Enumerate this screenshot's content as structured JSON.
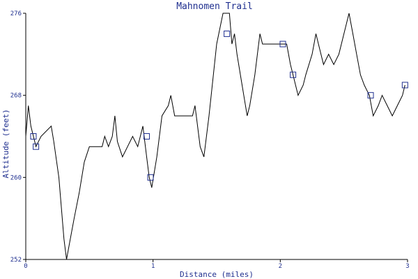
{
  "chart_data": {
    "type": "line",
    "title": "Mahnomen Trail",
    "xlabel": "Distance (miles)",
    "ylabel": "Altitude (feet)",
    "xlim": [
      0,
      3
    ],
    "ylim": [
      252,
      276
    ],
    "x_ticks": [
      0,
      1,
      2,
      3
    ],
    "y_ticks": [
      252,
      260,
      268,
      276
    ],
    "grid": false,
    "colors": {
      "line": "#000000",
      "text": "#1f2f8f",
      "marker": "#1f2f8f"
    },
    "series": [
      {
        "points": [
          [
            0.0,
            264.0
          ],
          [
            0.02,
            267.0
          ],
          [
            0.04,
            265.0
          ],
          [
            0.06,
            264.0
          ],
          [
            0.08,
            263.0
          ],
          [
            0.12,
            264.0
          ],
          [
            0.2,
            265.0
          ],
          [
            0.22,
            263.5
          ],
          [
            0.26,
            260.0
          ],
          [
            0.3,
            254.0
          ],
          [
            0.32,
            252.0
          ],
          [
            0.35,
            254.0
          ],
          [
            0.38,
            256.0
          ],
          [
            0.42,
            258.5
          ],
          [
            0.46,
            261.5
          ],
          [
            0.5,
            263.0
          ],
          [
            0.6,
            263.0
          ],
          [
            0.62,
            264.0
          ],
          [
            0.65,
            263.0
          ],
          [
            0.68,
            264.0
          ],
          [
            0.7,
            266.0
          ],
          [
            0.72,
            263.5
          ],
          [
            0.76,
            262.0
          ],
          [
            0.8,
            263.0
          ],
          [
            0.84,
            264.0
          ],
          [
            0.88,
            263.0
          ],
          [
            0.92,
            265.0
          ],
          [
            0.95,
            262.0
          ],
          [
            0.97,
            260.0
          ],
          [
            0.99,
            259.0
          ],
          [
            1.03,
            262.0
          ],
          [
            1.07,
            266.0
          ],
          [
            1.12,
            267.0
          ],
          [
            1.14,
            268.0
          ],
          [
            1.17,
            266.0
          ],
          [
            1.25,
            266.0
          ],
          [
            1.31,
            266.0
          ],
          [
            1.33,
            267.0
          ],
          [
            1.37,
            263.0
          ],
          [
            1.4,
            262.0
          ],
          [
            1.44,
            266.0
          ],
          [
            1.5,
            273.0
          ],
          [
            1.55,
            276.0
          ],
          [
            1.6,
            276.0
          ],
          [
            1.62,
            273.0
          ],
          [
            1.64,
            274.0
          ],
          [
            1.66,
            272.0
          ],
          [
            1.7,
            269.0
          ],
          [
            1.74,
            266.0
          ],
          [
            1.76,
            267.0
          ],
          [
            1.8,
            270.0
          ],
          [
            1.84,
            274.0
          ],
          [
            1.86,
            273.0
          ],
          [
            2.0,
            273.0
          ],
          [
            2.02,
            273.0
          ],
          [
            2.05,
            273.0
          ],
          [
            2.08,
            271.0
          ],
          [
            2.1,
            270.0
          ],
          [
            2.14,
            268.0
          ],
          [
            2.18,
            269.0
          ],
          [
            2.2,
            270.0
          ],
          [
            2.25,
            272.0
          ],
          [
            2.28,
            274.0
          ],
          [
            2.3,
            273.0
          ],
          [
            2.34,
            271.0
          ],
          [
            2.38,
            272.0
          ],
          [
            2.42,
            271.0
          ],
          [
            2.46,
            272.0
          ],
          [
            2.5,
            274.0
          ],
          [
            2.54,
            276.0
          ],
          [
            2.57,
            274.0
          ],
          [
            2.6,
            272.0
          ],
          [
            2.63,
            270.0
          ],
          [
            2.66,
            269.0
          ],
          [
            2.7,
            268.0
          ],
          [
            2.73,
            266.0
          ],
          [
            2.77,
            267.0
          ],
          [
            2.8,
            268.0
          ],
          [
            2.84,
            267.0
          ],
          [
            2.88,
            266.0
          ],
          [
            2.92,
            267.0
          ],
          [
            2.96,
            268.0
          ],
          [
            2.98,
            269.0
          ]
        ]
      }
    ],
    "markers": [
      [
        0.06,
        264.0
      ],
      [
        0.08,
        263.0
      ],
      [
        0.95,
        264.0
      ],
      [
        0.98,
        260.0
      ],
      [
        1.58,
        274.0
      ],
      [
        2.02,
        273.0
      ],
      [
        2.1,
        270.0
      ],
      [
        2.71,
        268.0
      ],
      [
        2.98,
        269.0
      ]
    ]
  }
}
